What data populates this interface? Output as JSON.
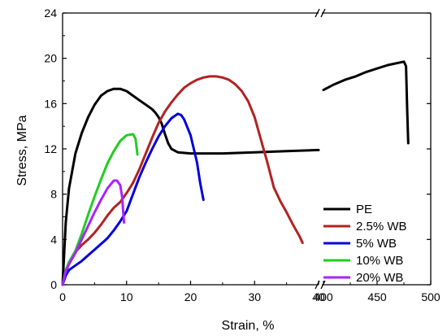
{
  "chart_data": {
    "type": "line",
    "title": "",
    "xlabel": "Strain, %",
    "ylabel": "Stress, MPa",
    "x_break": true,
    "x_ranges": [
      [
        0,
        40
      ],
      [
        400,
        500
      ]
    ],
    "ylim": [
      0,
      24
    ],
    "x_ticks_left": [
      "0",
      "10",
      "20",
      "30",
      "40"
    ],
    "x_ticks_right": [
      "400",
      "450",
      "500"
    ],
    "y_ticks": [
      "0",
      "4",
      "8",
      "12",
      "16",
      "20",
      "24"
    ],
    "legend_position": "right",
    "series": [
      {
        "name": "PE",
        "color": "#000000",
        "points": [
          [
            0,
            0
          ],
          [
            0.5,
            5.5
          ],
          [
            1,
            8.5
          ],
          [
            2,
            11.6
          ],
          [
            3,
            13.4
          ],
          [
            4,
            14.8
          ],
          [
            5,
            15.9
          ],
          [
            6,
            16.7
          ],
          [
            7,
            17.1
          ],
          [
            8,
            17.3
          ],
          [
            9,
            17.3
          ],
          [
            10,
            17.1
          ],
          [
            11,
            16.7
          ],
          [
            12,
            16.3
          ],
          [
            13,
            15.9
          ],
          [
            14,
            15.5
          ],
          [
            14.5,
            15.2
          ],
          [
            15,
            14.8
          ],
          [
            15.5,
            14.2
          ],
          [
            16,
            13.3
          ],
          [
            16.5,
            12.5
          ],
          [
            17,
            12.0
          ],
          [
            18,
            11.7
          ],
          [
            20,
            11.6
          ],
          [
            25,
            11.6
          ],
          [
            30,
            11.7
          ],
          [
            35,
            11.8
          ],
          [
            40,
            11.9
          ],
          [
            400,
            17.2
          ],
          [
            410,
            17.7
          ],
          [
            420,
            18.1
          ],
          [
            430,
            18.4
          ],
          [
            440,
            18.8
          ],
          [
            450,
            19.1
          ],
          [
            460,
            19.4
          ],
          [
            470,
            19.6
          ],
          [
            475,
            19.7
          ],
          [
            477,
            19.3
          ],
          [
            478,
            15.5
          ],
          [
            479,
            12.5
          ]
        ]
      },
      {
        "name": "2.5% WB",
        "color": "#b22222",
        "points": [
          [
            0,
            0
          ],
          [
            0.5,
            1.0
          ],
          [
            1,
            2.0
          ],
          [
            2,
            2.9
          ],
          [
            3,
            3.5
          ],
          [
            4,
            4.0
          ],
          [
            5,
            4.6
          ],
          [
            6,
            5.3
          ],
          [
            7,
            6.1
          ],
          [
            8,
            6.8
          ],
          [
            9,
            7.3
          ],
          [
            10,
            8.1
          ],
          [
            11,
            9.0
          ],
          [
            12,
            10.2
          ],
          [
            13,
            11.6
          ],
          [
            14,
            13.0
          ],
          [
            15,
            14.3
          ],
          [
            16,
            15.3
          ],
          [
            17,
            16.1
          ],
          [
            18,
            16.8
          ],
          [
            19,
            17.4
          ],
          [
            20,
            17.8
          ],
          [
            21,
            18.1
          ],
          [
            22,
            18.3
          ],
          [
            23,
            18.4
          ],
          [
            24,
            18.4
          ],
          [
            25,
            18.3
          ],
          [
            26,
            18.1
          ],
          [
            27,
            17.7
          ],
          [
            28,
            17.1
          ],
          [
            29,
            16.2
          ],
          [
            30,
            14.8
          ],
          [
            31,
            12.8
          ],
          [
            32,
            10.8
          ],
          [
            33,
            8.6
          ],
          [
            34,
            7.4
          ],
          [
            35,
            6.4
          ],
          [
            36,
            5.3
          ],
          [
            37,
            4.3
          ],
          [
            37.5,
            3.7
          ]
        ]
      },
      {
        "name": "5% WB",
        "color": "#0000dd",
        "points": [
          [
            0,
            0
          ],
          [
            0.5,
            0.8
          ],
          [
            1,
            1.3
          ],
          [
            2,
            1.7
          ],
          [
            3,
            2.1
          ],
          [
            4,
            2.6
          ],
          [
            5,
            3.1
          ],
          [
            6,
            3.6
          ],
          [
            7,
            4.1
          ],
          [
            8,
            4.8
          ],
          [
            9,
            5.6
          ],
          [
            10,
            6.5
          ],
          [
            11,
            8.0
          ],
          [
            12,
            9.5
          ],
          [
            13,
            10.8
          ],
          [
            14,
            12.0
          ],
          [
            15,
            13.1
          ],
          [
            16,
            14.0
          ],
          [
            17,
            14.7
          ],
          [
            18,
            15.1
          ],
          [
            18.5,
            15.0
          ],
          [
            19,
            14.6
          ],
          [
            20,
            13.2
          ],
          [
            21,
            10.8
          ],
          [
            21.5,
            9.0
          ],
          [
            22,
            7.5
          ]
        ]
      },
      {
        "name": "10% WB",
        "color": "#22cc22",
        "points": [
          [
            0,
            0
          ],
          [
            0.5,
            1.3
          ],
          [
            1,
            2.0
          ],
          [
            2,
            3.0
          ],
          [
            3,
            4.5
          ],
          [
            4,
            6.2
          ],
          [
            5,
            7.8
          ],
          [
            6,
            9.3
          ],
          [
            7,
            10.7
          ],
          [
            8,
            11.8
          ],
          [
            9,
            12.7
          ],
          [
            10,
            13.2
          ],
          [
            11,
            13.3
          ],
          [
            11.4,
            12.9
          ],
          [
            11.7,
            11.5
          ]
        ]
      },
      {
        "name": "20% WB",
        "color": "#aa22ff",
        "points": [
          [
            0,
            0
          ],
          [
            0.5,
            1.2
          ],
          [
            1,
            1.8
          ],
          [
            2,
            2.8
          ],
          [
            3,
            4.0
          ],
          [
            4,
            5.2
          ],
          [
            5,
            6.4
          ],
          [
            6,
            7.5
          ],
          [
            7,
            8.5
          ],
          [
            8,
            9.2
          ],
          [
            8.5,
            9.2
          ],
          [
            9,
            8.8
          ],
          [
            9.3,
            7.8
          ],
          [
            9.6,
            5.5
          ]
        ]
      }
    ]
  }
}
